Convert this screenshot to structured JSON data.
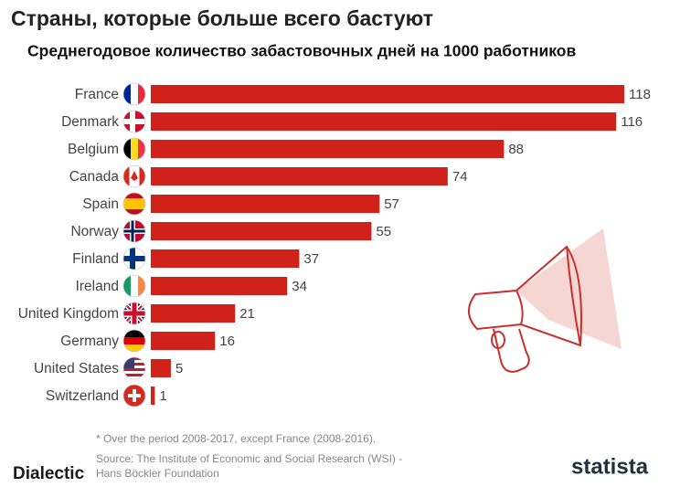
{
  "chart_data": {
    "type": "bar",
    "orientation": "horizontal",
    "title": "Страны, которые больше всего бастуют",
    "subtitle": "Среднегодовое количество забастовочных дней на 1000 работников",
    "categories": [
      "France",
      "Denmark",
      "Belgium",
      "Canada",
      "Spain",
      "Norway",
      "Finland",
      "Ireland",
      "United Kingdom",
      "Germany",
      "United States",
      "Switzerland"
    ],
    "values": [
      118,
      116,
      88,
      74,
      57,
      55,
      37,
      34,
      21,
      16,
      5,
      1
    ],
    "color": "#d0211b",
    "footnote": "* Over the period 2008-2017, except France (2008-2016).",
    "source": [
      "Source: The Institute of Economic and Social Research (WSI) -",
      "Hans Böckler Foundation"
    ],
    "brand": "statista",
    "watermark": "Dialectic"
  }
}
